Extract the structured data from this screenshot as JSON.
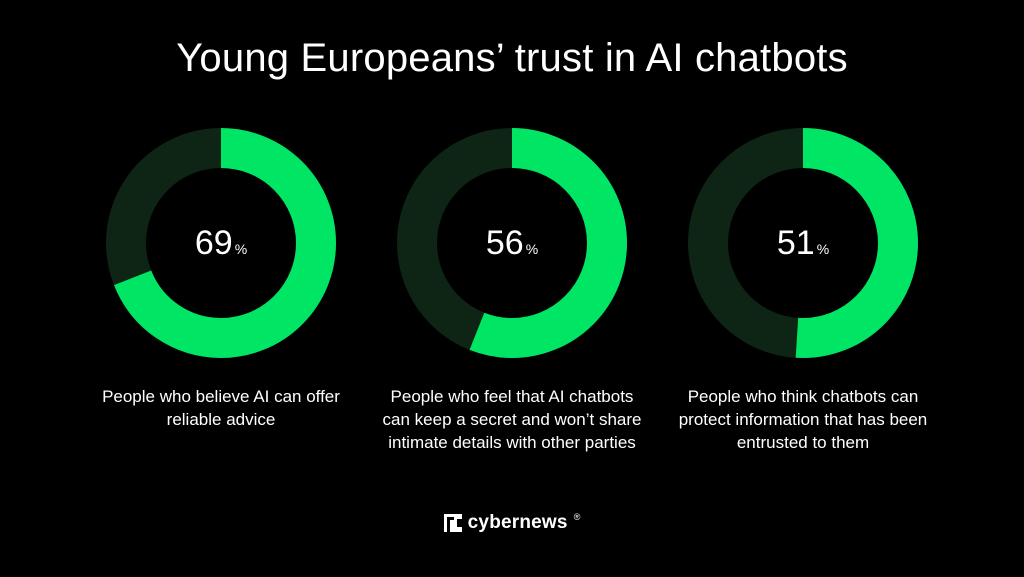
{
  "title": "Young Europeans’ trust in AI chatbots",
  "colors": {
    "background": "#000000",
    "accent": "#00e564",
    "track": "#0e2414",
    "text": "#ffffff"
  },
  "chart_data": [
    {
      "type": "pie",
      "value": 69,
      "value_label": "69",
      "unit": "%",
      "caption": "People who believe AI can offer reliable advice"
    },
    {
      "type": "pie",
      "value": 56,
      "value_label": "56",
      "unit": "%",
      "caption": "People who feel that AI chatbots can keep a secret and won’t share intimate details with other parties"
    },
    {
      "type": "pie",
      "value": 51,
      "value_label": "51",
      "unit": "%",
      "caption": "People who think chatbots can protect information that has been entrusted to them"
    }
  ],
  "brand": {
    "icon": "cybernews-logo-icon",
    "name": "cybernews",
    "mark": "®"
  }
}
